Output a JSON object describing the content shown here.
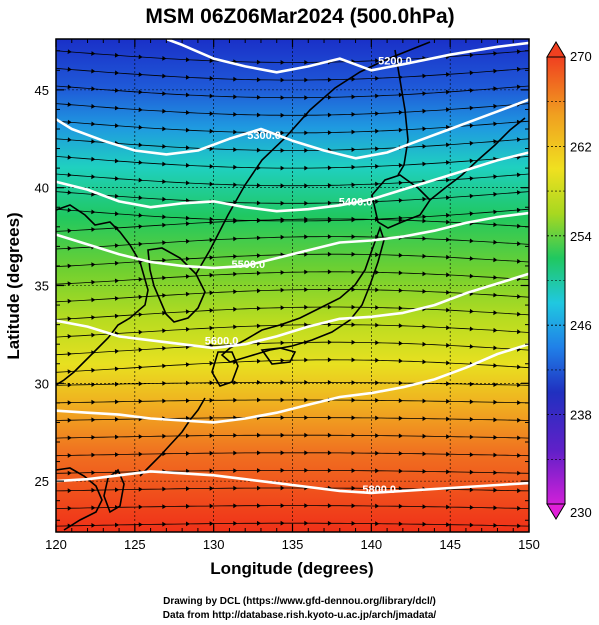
{
  "title": "MSM 06Z06Mar2024 (500.0hPa)",
  "xlabel": "Longitude (degrees)",
  "ylabel": "Latitude  (degrees)",
  "x_ticks": [
    "120",
    "125",
    "130",
    "135",
    "140",
    "145",
    "150"
  ],
  "y_ticks": [
    "25",
    "30",
    "35",
    "40",
    "45"
  ],
  "colorbar": {
    "labels": [
      "270",
      "262",
      "254",
      "246",
      "238",
      "230"
    ],
    "min": 230,
    "max": 270,
    "colors": [
      "#d020d8",
      "#2020c0",
      "#2080e8",
      "#20d0e0",
      "#20c860",
      "#a8d820",
      "#f0e020",
      "#f0a020",
      "#f04020"
    ]
  },
  "contours": {
    "color": "#ffffff",
    "labels": [
      "5200.0",
      "5300.0",
      "5400.0",
      "5500.0",
      "5600.0",
      "5800.0"
    ]
  },
  "credits": {
    "line1": "Drawing by DCL (https://www.gfd-dennou.org/library/dcl/)",
    "line2": "Data from http://database.rish.kyoto-u.ac.jp/arch/jmadata/"
  },
  "chart_data": {
    "type": "heatmap",
    "title": "MSM 06Z06Mar2024 (500.0hPa)",
    "xlabel": "Longitude (degrees)",
    "ylabel": "Latitude  (degrees)",
    "xlim": [
      120,
      150
    ],
    "ylim": [
      22.4,
      47.6
    ],
    "color_range": [
      230,
      270
    ],
    "grid": true,
    "contour_levels": [
      5200,
      5300,
      5400,
      5500,
      5600,
      5700,
      5800
    ],
    "contours": [
      {
        "level": 5200,
        "points": [
          [
            127,
            47.6
          ],
          [
            128,
            47.3
          ],
          [
            130,
            46.6
          ],
          [
            132,
            46.2
          ],
          [
            134,
            45.9
          ],
          [
            136,
            46.2
          ],
          [
            138,
            46.6
          ],
          [
            140,
            46.0
          ],
          [
            142,
            46.3
          ],
          [
            145,
            46.8
          ],
          [
            148,
            47.2
          ],
          [
            150,
            47.4
          ]
        ]
      },
      {
        "level": 5300,
        "points": [
          [
            120,
            43.5
          ],
          [
            121,
            43.0
          ],
          [
            123,
            42.4
          ],
          [
            125,
            41.9
          ],
          [
            127,
            41.7
          ],
          [
            129,
            41.9
          ],
          [
            131,
            42.5
          ],
          [
            133,
            43.0
          ],
          [
            135,
            42.4
          ],
          [
            137,
            41.9
          ],
          [
            139,
            41.5
          ],
          [
            141,
            41.8
          ],
          [
            143,
            42.4
          ],
          [
            145,
            43.0
          ],
          [
            147,
            43.6
          ],
          [
            150,
            44.5
          ]
        ]
      },
      {
        "level": 5400,
        "points": [
          [
            120,
            40.3
          ],
          [
            122,
            39.9
          ],
          [
            124,
            39.3
          ],
          [
            126,
            39.0
          ],
          [
            128,
            39.2
          ],
          [
            130,
            39.3
          ],
          [
            132,
            39.0
          ],
          [
            134,
            38.8
          ],
          [
            136,
            38.9
          ],
          [
            138,
            39.1
          ],
          [
            140,
            39.4
          ],
          [
            142,
            39.9
          ],
          [
            144,
            40.4
          ],
          [
            146,
            40.9
          ],
          [
            148,
            41.4
          ],
          [
            150,
            41.8
          ]
        ]
      },
      {
        "level": 5500,
        "points": [
          [
            120,
            37.6
          ],
          [
            122,
            37.1
          ],
          [
            124,
            36.6
          ],
          [
            126,
            36.2
          ],
          [
            128,
            36.0
          ],
          [
            130,
            35.9
          ],
          [
            132,
            36.0
          ],
          [
            134,
            36.4
          ],
          [
            136,
            36.8
          ],
          [
            138,
            37.2
          ],
          [
            140,
            37.3
          ],
          [
            142,
            37.5
          ],
          [
            144,
            37.8
          ],
          [
            146,
            38.2
          ],
          [
            148,
            38.5
          ],
          [
            150,
            38.7
          ]
        ]
      },
      {
        "level": 5600,
        "points": [
          [
            120,
            33.2
          ],
          [
            122,
            32.9
          ],
          [
            124,
            32.4
          ],
          [
            126,
            32.2
          ],
          [
            128,
            32.0
          ],
          [
            130,
            31.8
          ],
          [
            132,
            32.0
          ],
          [
            134,
            32.4
          ],
          [
            136,
            32.9
          ],
          [
            138,
            33.3
          ],
          [
            140,
            33.4
          ],
          [
            142,
            33.6
          ],
          [
            144,
            34.0
          ],
          [
            146,
            34.6
          ],
          [
            148,
            35.1
          ],
          [
            150,
            35.6
          ]
        ]
      },
      {
        "level": 5700,
        "points": [
          [
            120,
            28.6
          ],
          [
            122,
            28.5
          ],
          [
            124,
            28.4
          ],
          [
            126,
            28.2
          ],
          [
            128,
            28.1
          ],
          [
            130,
            28.0
          ],
          [
            132,
            28.2
          ],
          [
            134,
            28.5
          ],
          [
            136,
            28.9
          ],
          [
            138,
            29.3
          ],
          [
            140,
            29.5
          ],
          [
            142,
            29.8
          ],
          [
            144,
            30.2
          ],
          [
            146,
            30.8
          ],
          [
            148,
            31.5
          ],
          [
            150,
            32.0
          ]
        ]
      },
      {
        "level": 5800,
        "points": [
          [
            120,
            25.0
          ],
          [
            122,
            25.1
          ],
          [
            124,
            25.3
          ],
          [
            126,
            25.5
          ],
          [
            128,
            25.4
          ],
          [
            130,
            25.3
          ],
          [
            132,
            25.1
          ],
          [
            134,
            24.9
          ],
          [
            136,
            24.7
          ],
          [
            138,
            24.5
          ],
          [
            140,
            24.4
          ],
          [
            142,
            24.5
          ],
          [
            144,
            24.6
          ],
          [
            146,
            24.7
          ],
          [
            148,
            24.8
          ],
          [
            150,
            24.9
          ]
        ]
      }
    ],
    "label_positions": [
      {
        "text": "5200.0",
        "lon": 141.5,
        "lat": 46.5
      },
      {
        "text": "5300.0",
        "lon": 133.2,
        "lat": 42.7
      },
      {
        "text": "5400.0",
        "lon": 139.0,
        "lat": 39.3
      },
      {
        "text": "5500.0",
        "lon": 132.2,
        "lat": 36.1
      },
      {
        "text": "5600.0",
        "lon": 130.5,
        "lat": 32.2
      },
      {
        "text": "5800.0",
        "lon": 140.5,
        "lat": 24.6
      }
    ],
    "vector_field": "westerly flow, predominantly eastward arrows across domain"
  }
}
